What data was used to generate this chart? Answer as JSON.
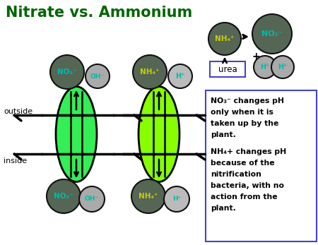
{
  "title": "Nitrate vs. Ammonium",
  "title_color": "#006600",
  "title_fontsize": 15,
  "bg_color": "#ffffff",
  "ellipse_no3_color": "#33ee55",
  "ellipse_nh4_color": "#88ff00",
  "ellipse_border_color": "#000000",
  "circle_no3_color": "#556655",
  "circle_nh4_color": "#556655",
  "circle_oh_color": "#aaaaaa",
  "circle_h_color": "#bbbbbb",
  "circle_border_color": "#111111",
  "text_cyan": "#00bbaa",
  "text_yellow": "#cccc00",
  "text_black": "#000000",
  "box_text_line1": "NO₃⁻ changes pH",
  "box_text_line2": "only when it is",
  "box_text_line3": "taken up by the",
  "box_text_line4": "plant.",
  "box_text_line5": "NH₄+ changes pH",
  "box_text_line6": "because of the",
  "box_text_line7": "nitrification",
  "box_text_line8": "bacteria, with no",
  "box_text_line9": "action from the",
  "box_text_line10": "plant.",
  "box_border_color": "#4444cc",
  "urea_label": "urea",
  "urea_box_color": "#4444cc",
  "outside_label": "outside",
  "inside_label": "inside",
  "no3_label": "NO₃⁻",
  "oh_label": "OH⁻",
  "nh4_label": "NH₄⁺",
  "h_label": "H⁺"
}
